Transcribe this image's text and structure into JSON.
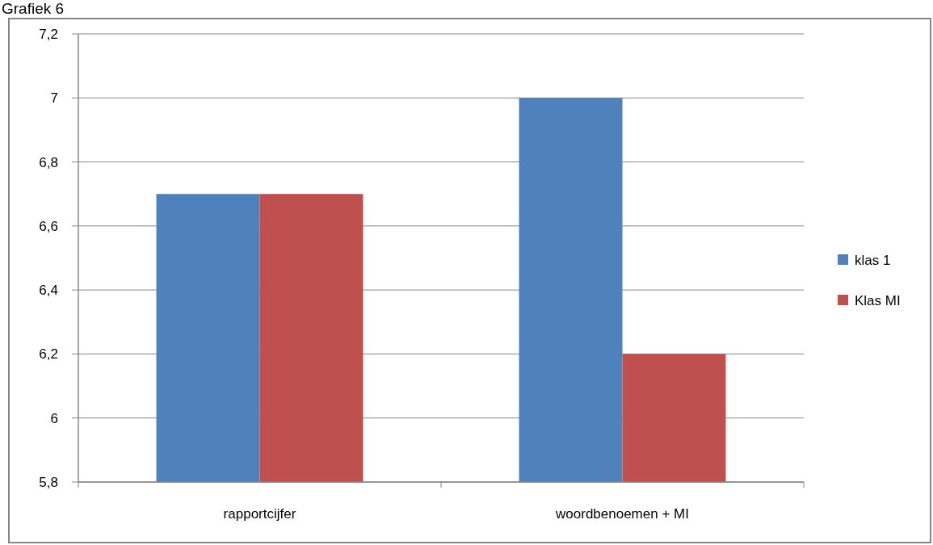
{
  "chart_data": {
    "type": "bar",
    "title": "Grafiek 6",
    "categories": [
      "rapportcijfer",
      "woordbenoemen + MI"
    ],
    "series": [
      {
        "name": "klas 1",
        "color": "#4f81bd",
        "values": [
          6.7,
          7.0
        ]
      },
      {
        "name": "Klas MI",
        "color": "#c0504d",
        "values": [
          6.7,
          6.2
        ]
      }
    ],
    "ylim": [
      5.8,
      7.2
    ],
    "yticks": [
      {
        "value": 5.8,
        "label": "5,8"
      },
      6,
      {
        "value": 6.2,
        "label": "6,2"
      },
      {
        "value": 6.4,
        "label": "6,4"
      },
      {
        "value": 6.6,
        "label": "6,6"
      },
      {
        "value": 6.8,
        "label": "6,8"
      },
      7,
      {
        "value": 7.2,
        "label": "7,2"
      }
    ],
    "grid": "y",
    "legend": "right"
  }
}
